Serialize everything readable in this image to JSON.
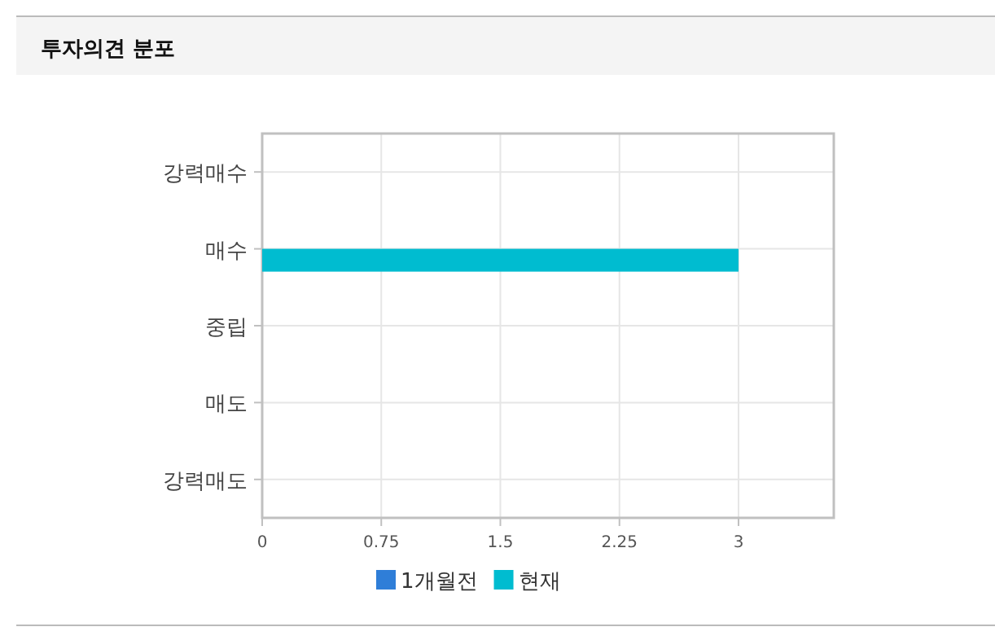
{
  "chart_data": {
    "type": "bar",
    "orientation": "horizontal",
    "title": "투자의견 분포",
    "categories": [
      "강력매수",
      "매수",
      "중립",
      "매도",
      "강력매도"
    ],
    "series": [
      {
        "name": "1개월전",
        "color": "#2f7ed8",
        "values": [
          0,
          0,
          0,
          0,
          0
        ]
      },
      {
        "name": "현재",
        "color": "#00bcd0",
        "values": [
          0,
          3,
          0,
          0,
          0
        ]
      }
    ],
    "xlim": [
      0,
      3.6
    ],
    "xticks": [
      0,
      0.75,
      1.5,
      2.25,
      3
    ],
    "grid": true,
    "legend": "bottom"
  }
}
